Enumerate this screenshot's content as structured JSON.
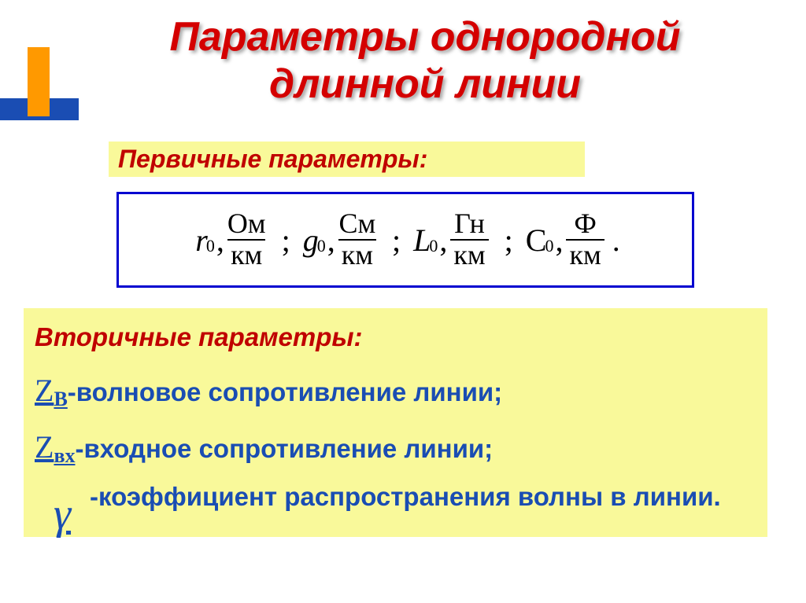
{
  "colors": {
    "title_red": "#d40000",
    "header_red": "#c00000",
    "text_blue": "#1a4db3",
    "highlight_yellow": "#f9f99a",
    "formula_border": "#0000d0",
    "accent_orange": "#ff9900",
    "accent_blue": "#1a4db3",
    "background": "#ffffff"
  },
  "title": "Параметры однородной длинной линии",
  "primary_label": "Первичные параметры:",
  "formula_units": {
    "r": {
      "var": "r",
      "sub": "0",
      "num": "Ом",
      "den": "км"
    },
    "g": {
      "var": "g",
      "sub": " 0",
      "num": "См",
      "den": "км"
    },
    "L": {
      "var": "L",
      "sub": "0",
      "num": "Гн",
      "den": "км"
    },
    "C": {
      "var": "С",
      "sub": "0",
      "num": "Ф",
      "den": "км"
    }
  },
  "secondary": {
    "header": "Вторичные параметры:",
    "z_v": {
      "sym": "Z",
      "sub": "В",
      "text": "-волновое сопротивление линии;"
    },
    "z_vx": {
      "sym": "Z",
      "sub": "вх",
      "text": "-входное сопротивление линии;"
    },
    "gamma": {
      "sym": "γ",
      "text": "-коэффициент распространения волны в линии."
    }
  }
}
